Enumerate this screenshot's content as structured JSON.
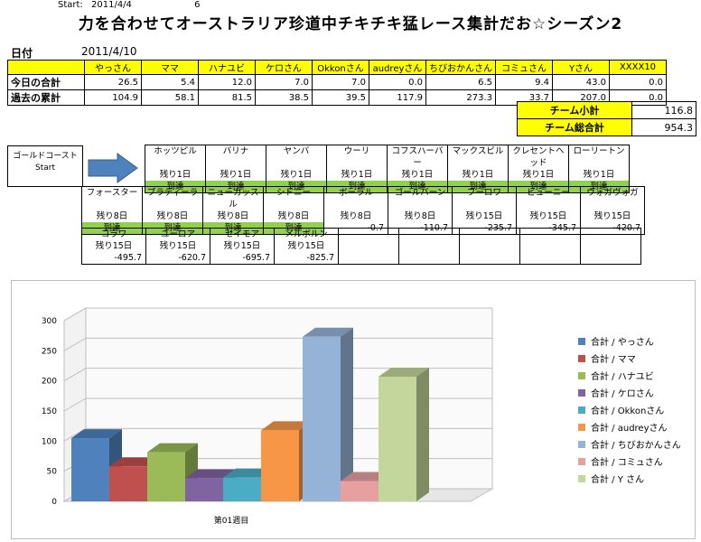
{
  "header": {
    "start_label": "Start:",
    "start_date": "2011/4/4",
    "number": "6",
    "title": "力を合わせてオーストラリア珍道中チキチキ猛レース集計だお☆シーズン2",
    "date_label": "日付",
    "date_value": "2011/4/10"
  },
  "score_table": {
    "columns": [
      "やっさん",
      "ママ",
      "ハナユビ",
      "ケロさん",
      "Okkonさん",
      "audreyさん",
      "ちびおかんさん",
      "コミュさん",
      "Yさん",
      "XXXX10"
    ],
    "rows": [
      {
        "label": "今日の合計",
        "values": [
          "26.5",
          "5.4",
          "12.0",
          "7.0",
          "7.0",
          "0.0",
          "6.5",
          "9.4",
          "43.0",
          "0.0"
        ]
      },
      {
        "label": "過去の累計",
        "values": [
          "104.9",
          "58.1",
          "81.5",
          "38.5",
          "39.5",
          "117.9",
          "273.3",
          "33.7",
          "207.0",
          "0.0"
        ]
      }
    ]
  },
  "team": {
    "subtotal_label": "チーム小計",
    "subtotal_value": "116.8",
    "total_label": "チーム総合計",
    "total_value": "954.3"
  },
  "route": {
    "start_name": "ゴールドコースト",
    "start_label": "Start",
    "row1": [
      {
        "name": "ホッツピル",
        "rem": "残り1日",
        "status": "到達"
      },
      {
        "name": "バリナ",
        "rem": "残り1日",
        "status": "到達"
      },
      {
        "name": "ヤンバ",
        "rem": "残り1日",
        "status": "到達"
      },
      {
        "name": "ウーリ",
        "rem": "残り1日",
        "status": "到達"
      },
      {
        "name": "コフスハーバー",
        "rem": "残り1日",
        "status": "到達"
      },
      {
        "name": "マックスビル",
        "rem": "残り1日",
        "status": "到達"
      },
      {
        "name": "クレセントヘッド",
        "rem": "残り1日",
        "status": "到達"
      },
      {
        "name": "ローリートン",
        "rem": "残り1日",
        "status": "到達"
      }
    ],
    "row2": [
      {
        "name": "フォースター",
        "rem": "残り8日",
        "status": "到達"
      },
      {
        "name": "ブラディーラ",
        "rem": "残り8日",
        "status": "到達"
      },
      {
        "name": "ニューカッスル",
        "rem": "残り8日",
        "status": "到達"
      },
      {
        "name": "シドニー",
        "rem": "残り8日",
        "status": "到達"
      },
      {
        "name": "ボーラル",
        "rem": "残り8日",
        "status": "-0.7"
      },
      {
        "name": "ゴールバーン",
        "rem": "残り8日",
        "status": "-110.7"
      },
      {
        "name": "ブーロワ",
        "rem": "残り15日",
        "status": "-235.7"
      },
      {
        "name": "ビューニー",
        "rem": "残り15日",
        "status": "-345.7"
      },
      {
        "name": "ヴォガヴォガ",
        "rem": "残り15日",
        "status": "-420.7"
      }
    ],
    "row3": [
      {
        "name": "コラワ",
        "rem": "残り15日",
        "status": "-495.7"
      },
      {
        "name": "ユーロア",
        "rem": "残り15日",
        "status": "-620.7"
      },
      {
        "name": "セイモア",
        "rem": "残り15日",
        "status": "-695.7"
      },
      {
        "name": "メルボルン",
        "rem": "残り15日",
        "status": "-825.7"
      }
    ]
  },
  "chart_data": {
    "type": "bar",
    "categories": [
      "第01週目"
    ],
    "ylim": [
      0,
      300
    ],
    "yticks": [
      "0",
      "50",
      "100",
      "150",
      "200",
      "250",
      "300"
    ],
    "series": [
      {
        "name": "合計 / やっさん",
        "values": [
          104.9
        ],
        "color": "#4f81bd"
      },
      {
        "name": "合計 / ママ",
        "values": [
          58.1
        ],
        "color": "#c0504d"
      },
      {
        "name": "合計 / ハナユビ",
        "values": [
          81.5
        ],
        "color": "#9bbb59"
      },
      {
        "name": "合計 / ケロさん",
        "values": [
          38.5
        ],
        "color": "#8064a2"
      },
      {
        "name": "合計 / Okkonさん",
        "values": [
          39.5
        ],
        "color": "#4bacc6"
      },
      {
        "name": "合計 / audreyさん",
        "values": [
          117.9
        ],
        "color": "#f79646"
      },
      {
        "name": "合計 / ちびおかんさん",
        "values": [
          273.3
        ],
        "color": "#95b3d7"
      },
      {
        "name": "合計 / コミュさん",
        "values": [
          33.7
        ],
        "color": "#e6a0a0"
      },
      {
        "name": "合計 / Y さん",
        "values": [
          207.0
        ],
        "color": "#c3d69b"
      }
    ],
    "grid": true,
    "legend_position": "right"
  }
}
